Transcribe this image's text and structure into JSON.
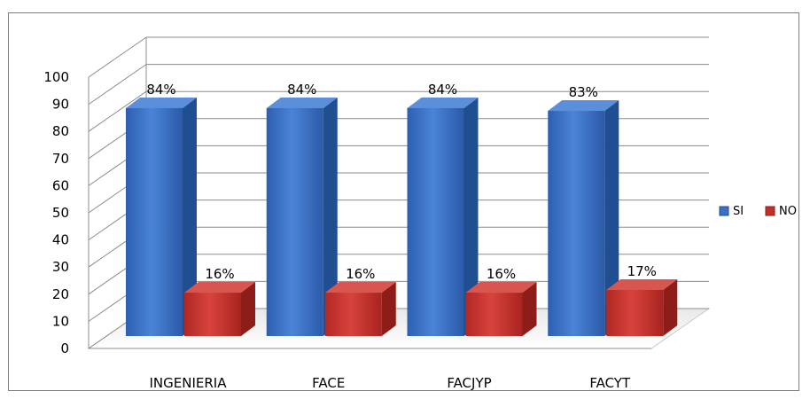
{
  "chart_data": {
    "type": "bar",
    "variant": "3d-clustered-column",
    "title": "",
    "xlabel": "",
    "ylabel": "",
    "categories": [
      "INGENIERIA",
      "FACE",
      "FACJYP",
      "FACYT"
    ],
    "series": [
      {
        "name": "SI",
        "values": [
          84,
          84,
          84,
          83
        ],
        "labels": [
          "84%",
          "84%",
          "84%",
          "83%"
        ],
        "color": "#3a6fc4"
      },
      {
        "name": "NO",
        "values": [
          16,
          16,
          16,
          17
        ],
        "labels": [
          "16%",
          "16%",
          "16%",
          "17%"
        ],
        "color": "#c0302b"
      }
    ],
    "ylim": [
      0,
      100
    ],
    "yticks": [
      "0",
      "10",
      "20",
      "30",
      "40",
      "50",
      "60",
      "70",
      "80",
      "90",
      "100"
    ],
    "grid": true,
    "legend": {
      "position": "right",
      "entries": [
        "SI",
        "NO"
      ]
    }
  }
}
